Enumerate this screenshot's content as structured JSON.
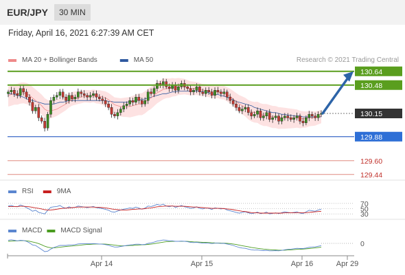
{
  "header": {
    "pair": "EUR/JPY",
    "timeframe": "30 MIN",
    "datetime": "Friday, April 16, 2021 6:27:39 AM CET"
  },
  "colors": {
    "resistance": "#5a9e1e",
    "support_line": "#3a68c8",
    "support_label": "#2e6fd6",
    "lower_level": "#e08a80",
    "lower_text": "#c0302a",
    "current": "#333333",
    "bollinger_fill": "#fde2e2",
    "ma20": "#ef8a8a",
    "ma50": "#2f5aa0",
    "arrow": "#2d64a8",
    "rsi": "#5b86cf",
    "rsi_ma": "#c82020",
    "macd": "#5b86cf",
    "macd_signal": "#4a9c20"
  },
  "legend": {
    "main": [
      {
        "label": "MA 20 + Bollinger Bands",
        "color": "#ef8a8a"
      },
      {
        "label": "MA 50",
        "color": "#2f5aa0"
      }
    ],
    "rsi": [
      {
        "label": "RSI",
        "color": "#5b86cf"
      },
      {
        "label": "9MA",
        "color": "#c82020"
      }
    ],
    "macd": [
      {
        "label": "MACD",
        "color": "#5b86cf"
      },
      {
        "label": "MACD Signal",
        "color": "#4a9c20"
      }
    ]
  },
  "credit": "Research © 2021 Trading Central",
  "chart_data": [
    {
      "type": "candlestick",
      "title": "",
      "levels": [
        {
          "value": 130.64,
          "label": "130.64",
          "kind": "resistance"
        },
        {
          "value": 130.48,
          "label": "130.48",
          "kind": "resistance"
        },
        {
          "value": 130.15,
          "label": "130.15",
          "kind": "current"
        },
        {
          "value": 129.88,
          "label": "129.88",
          "kind": "support"
        },
        {
          "value": 129.6,
          "label": "129.60",
          "kind": "lower"
        },
        {
          "value": 129.44,
          "label": "129.44",
          "kind": "lower"
        }
      ],
      "ylim": [
        129.35,
        130.75
      ],
      "x_ticks": [
        "Apr 14",
        "Apr 15",
        "Apr 16",
        "Apr 29"
      ],
      "x_tick_positions": [
        48,
        96,
        144,
        166
      ],
      "close": [
        130.4,
        130.42,
        130.38,
        130.36,
        130.44,
        130.4,
        130.34,
        130.28,
        130.18,
        130.22,
        130.1,
        130.06,
        129.98,
        130.14,
        130.3,
        130.34,
        130.36,
        130.4,
        130.34,
        130.3,
        130.36,
        130.32,
        130.34,
        130.4,
        130.38,
        130.36,
        130.34,
        130.36,
        130.38,
        130.34,
        130.32,
        130.3,
        130.26,
        130.22,
        130.14,
        130.12,
        130.16,
        130.2,
        130.24,
        130.26,
        130.3,
        130.28,
        130.34,
        130.3,
        130.26,
        130.3,
        130.4,
        130.38,
        130.44,
        130.5,
        130.48,
        130.52,
        130.46,
        130.44,
        130.48,
        130.42,
        130.46,
        130.5,
        130.46,
        130.44,
        130.4,
        130.42,
        130.46,
        130.4,
        130.38,
        130.42,
        130.4,
        130.36,
        130.42,
        130.4,
        130.38,
        130.4,
        130.34,
        130.3,
        130.26,
        130.22,
        130.18,
        130.2,
        130.22,
        130.16,
        130.12,
        130.14,
        130.18,
        130.1,
        130.12,
        130.16,
        130.08,
        130.1,
        130.12,
        130.06,
        130.1,
        130.12,
        130.1,
        130.08,
        130.1,
        130.12,
        130.06,
        130.04,
        130.1,
        130.14,
        130.12,
        130.1,
        130.14,
        130.15
      ],
      "ma20": [
        130.36,
        130.37,
        130.38,
        130.38,
        130.39,
        130.39,
        130.38,
        130.36,
        130.33,
        130.3,
        130.27,
        130.24,
        130.2,
        130.18,
        130.18,
        130.19,
        130.2,
        130.22,
        130.24,
        130.26,
        130.29,
        130.31,
        130.32,
        130.33,
        130.34,
        130.35,
        130.35,
        130.35,
        130.36,
        130.35,
        130.35,
        130.34,
        130.33,
        130.31,
        130.28,
        130.25,
        130.24,
        130.23,
        130.23,
        130.23,
        130.23,
        130.24,
        130.25,
        130.26,
        130.26,
        130.28,
        130.31,
        130.33,
        130.36,
        130.39,
        130.41,
        130.43,
        130.44,
        130.44,
        130.45,
        130.45,
        130.46,
        130.46,
        130.46,
        130.45,
        130.44,
        130.44,
        130.44,
        130.43,
        130.42,
        130.42,
        130.41,
        130.4,
        130.4,
        130.4,
        130.39,
        130.39,
        130.37,
        130.35,
        130.32,
        130.29,
        130.26,
        130.24,
        130.22,
        130.19,
        130.17,
        130.16,
        130.16,
        130.14,
        130.13,
        130.13,
        130.12,
        130.11,
        130.11,
        130.1,
        130.1,
        130.1,
        130.1,
        130.1,
        130.1,
        130.1,
        130.09,
        130.09,
        130.09,
        130.1,
        130.1,
        130.1,
        130.11,
        130.12
      ],
      "ma50": [
        130.38,
        130.38,
        130.37,
        130.36,
        130.35,
        130.34,
        130.32,
        130.31,
        130.3,
        130.29,
        130.28,
        130.27,
        130.26,
        130.26,
        130.26,
        130.26,
        130.27,
        130.28,
        130.28,
        130.29,
        130.3,
        130.3,
        130.3,
        130.3,
        130.3,
        130.3,
        130.3,
        130.3,
        130.3,
        130.3,
        130.3,
        130.3,
        130.3,
        130.29,
        130.29,
        130.28,
        130.28,
        130.28,
        130.28,
        130.28,
        130.29,
        130.29,
        130.3,
        130.31,
        130.31,
        130.32,
        130.33,
        130.34,
        130.35,
        130.36,
        130.37,
        130.38,
        130.38,
        130.39,
        130.4,
        130.4,
        130.41,
        130.41,
        130.41,
        130.41,
        130.41,
        130.41,
        130.41,
        130.41,
        130.4,
        130.4,
        130.39,
        130.38,
        130.37,
        130.37,
        130.36,
        130.35,
        130.34,
        130.32,
        130.31,
        130.29,
        130.28,
        130.27,
        130.26,
        130.25,
        130.24,
        130.22,
        130.21,
        130.2,
        130.19,
        130.18,
        130.17,
        130.16,
        130.16,
        130.15,
        130.14,
        130.14,
        130.13,
        130.13,
        130.12,
        130.12,
        130.12,
        130.11,
        130.11,
        130.11,
        130.11,
        130.11,
        130.11,
        130.11
      ]
    },
    {
      "type": "line",
      "name": "RSI",
      "levels": [
        70,
        50,
        30
      ],
      "level_labels": [
        "70",
        "50",
        "30"
      ],
      "ylim": [
        20,
        80
      ],
      "rsi": [
        60,
        62,
        58,
        57,
        64,
        60,
        54,
        48,
        40,
        44,
        36,
        33,
        30,
        44,
        55,
        57,
        58,
        62,
        55,
        51,
        57,
        53,
        55,
        60,
        58,
        56,
        54,
        56,
        58,
        54,
        52,
        50,
        47,
        44,
        38,
        37,
        41,
        45,
        48,
        50,
        53,
        51,
        56,
        52,
        48,
        52,
        60,
        58,
        62,
        66,
        63,
        67,
        60,
        57,
        61,
        55,
        58,
        62,
        57,
        55,
        51,
        53,
        57,
        51,
        49,
        53,
        51,
        47,
        53,
        51,
        49,
        51,
        45,
        42,
        39,
        36,
        33,
        36,
        38,
        34,
        31,
        33,
        37,
        31,
        33,
        37,
        30,
        32,
        34,
        31,
        35,
        38,
        36,
        34,
        36,
        38,
        33,
        31,
        38,
        44,
        42,
        40,
        45,
        48
      ],
      "rsi_ma": [
        58,
        58,
        58,
        58,
        59,
        59,
        58,
        57,
        55,
        53,
        51,
        49,
        46,
        45,
        45,
        46,
        48,
        50,
        51,
        52,
        53,
        54,
        55,
        56,
        56,
        56,
        56,
        56,
        56,
        55,
        55,
        54,
        53,
        51,
        49,
        47,
        46,
        45,
        45,
        45,
        46,
        47,
        48,
        49,
        49,
        50,
        52,
        53,
        55,
        57,
        58,
        59,
        60,
        60,
        60,
        59,
        59,
        59,
        59,
        58,
        57,
        56,
        56,
        55,
        54,
        53,
        52,
        51,
        51,
        51,
        51,
        50,
        49,
        48,
        46,
        44,
        42,
        40,
        39,
        37,
        35,
        34,
        34,
        33,
        33,
        33,
        33,
        33,
        33,
        33,
        33,
        34,
        34,
        34,
        34,
        35,
        35,
        35,
        35,
        36,
        37,
        38,
        39,
        40
      ]
    },
    {
      "type": "line",
      "name": "MACD",
      "levels": [
        0
      ],
      "level_labels": [
        "0"
      ],
      "ylim": [
        -0.12,
        0.08
      ],
      "macd": [
        0.03,
        0.035,
        0.03,
        0.025,
        0.03,
        0.028,
        0.02,
        0.005,
        -0.015,
        -0.02,
        -0.04,
        -0.06,
        -0.08,
        -0.075,
        -0.055,
        -0.04,
        -0.03,
        -0.02,
        -0.02,
        -0.02,
        -0.015,
        -0.015,
        -0.012,
        -0.005,
        -0.003,
        -0.003,
        -0.004,
        -0.003,
        -0.002,
        -0.004,
        -0.006,
        -0.008,
        -0.012,
        -0.018,
        -0.028,
        -0.035,
        -0.035,
        -0.03,
        -0.025,
        -0.02,
        -0.015,
        -0.013,
        -0.008,
        -0.008,
        -0.012,
        -0.01,
        0.0,
        0.005,
        0.012,
        0.022,
        0.027,
        0.033,
        0.03,
        0.025,
        0.025,
        0.02,
        0.02,
        0.022,
        0.02,
        0.016,
        0.01,
        0.008,
        0.01,
        0.006,
        0.002,
        0.004,
        0.002,
        -0.002,
        0.002,
        0.002,
        -0.001,
        0.0,
        -0.006,
        -0.012,
        -0.02,
        -0.03,
        -0.04,
        -0.045,
        -0.048,
        -0.055,
        -0.062,
        -0.065,
        -0.064,
        -0.068,
        -0.07,
        -0.068,
        -0.072,
        -0.072,
        -0.07,
        -0.072,
        -0.068,
        -0.062,
        -0.058,
        -0.056,
        -0.052,
        -0.048,
        -0.05,
        -0.05,
        -0.045,
        -0.038,
        -0.035,
        -0.034,
        -0.028,
        -0.022
      ],
      "signal": [
        0.02,
        0.022,
        0.024,
        0.025,
        0.026,
        0.026,
        0.025,
        0.021,
        0.014,
        0.007,
        -0.002,
        -0.014,
        -0.027,
        -0.037,
        -0.042,
        -0.043,
        -0.041,
        -0.037,
        -0.034,
        -0.031,
        -0.028,
        -0.025,
        -0.022,
        -0.019,
        -0.016,
        -0.013,
        -0.011,
        -0.009,
        -0.007,
        -0.006,
        -0.006,
        -0.006,
        -0.007,
        -0.009,
        -0.013,
        -0.017,
        -0.021,
        -0.023,
        -0.024,
        -0.023,
        -0.021,
        -0.02,
        -0.017,
        -0.015,
        -0.014,
        -0.013,
        -0.01,
        -0.007,
        -0.003,
        0.002,
        0.007,
        0.012,
        0.016,
        0.018,
        0.019,
        0.019,
        0.019,
        0.02,
        0.02,
        0.019,
        0.017,
        0.015,
        0.014,
        0.012,
        0.01,
        0.009,
        0.008,
        0.006,
        0.005,
        0.004,
        0.003,
        0.002,
        0.0,
        -0.002,
        -0.006,
        -0.011,
        -0.017,
        -0.023,
        -0.028,
        -0.033,
        -0.039,
        -0.044,
        -0.048,
        -0.052,
        -0.055,
        -0.058,
        -0.061,
        -0.063,
        -0.064,
        -0.066,
        -0.066,
        -0.066,
        -0.064,
        -0.063,
        -0.061,
        -0.058,
        -0.057,
        -0.055,
        -0.053,
        -0.05,
        -0.047,
        -0.044,
        -0.041,
        -0.037
      ]
    }
  ]
}
